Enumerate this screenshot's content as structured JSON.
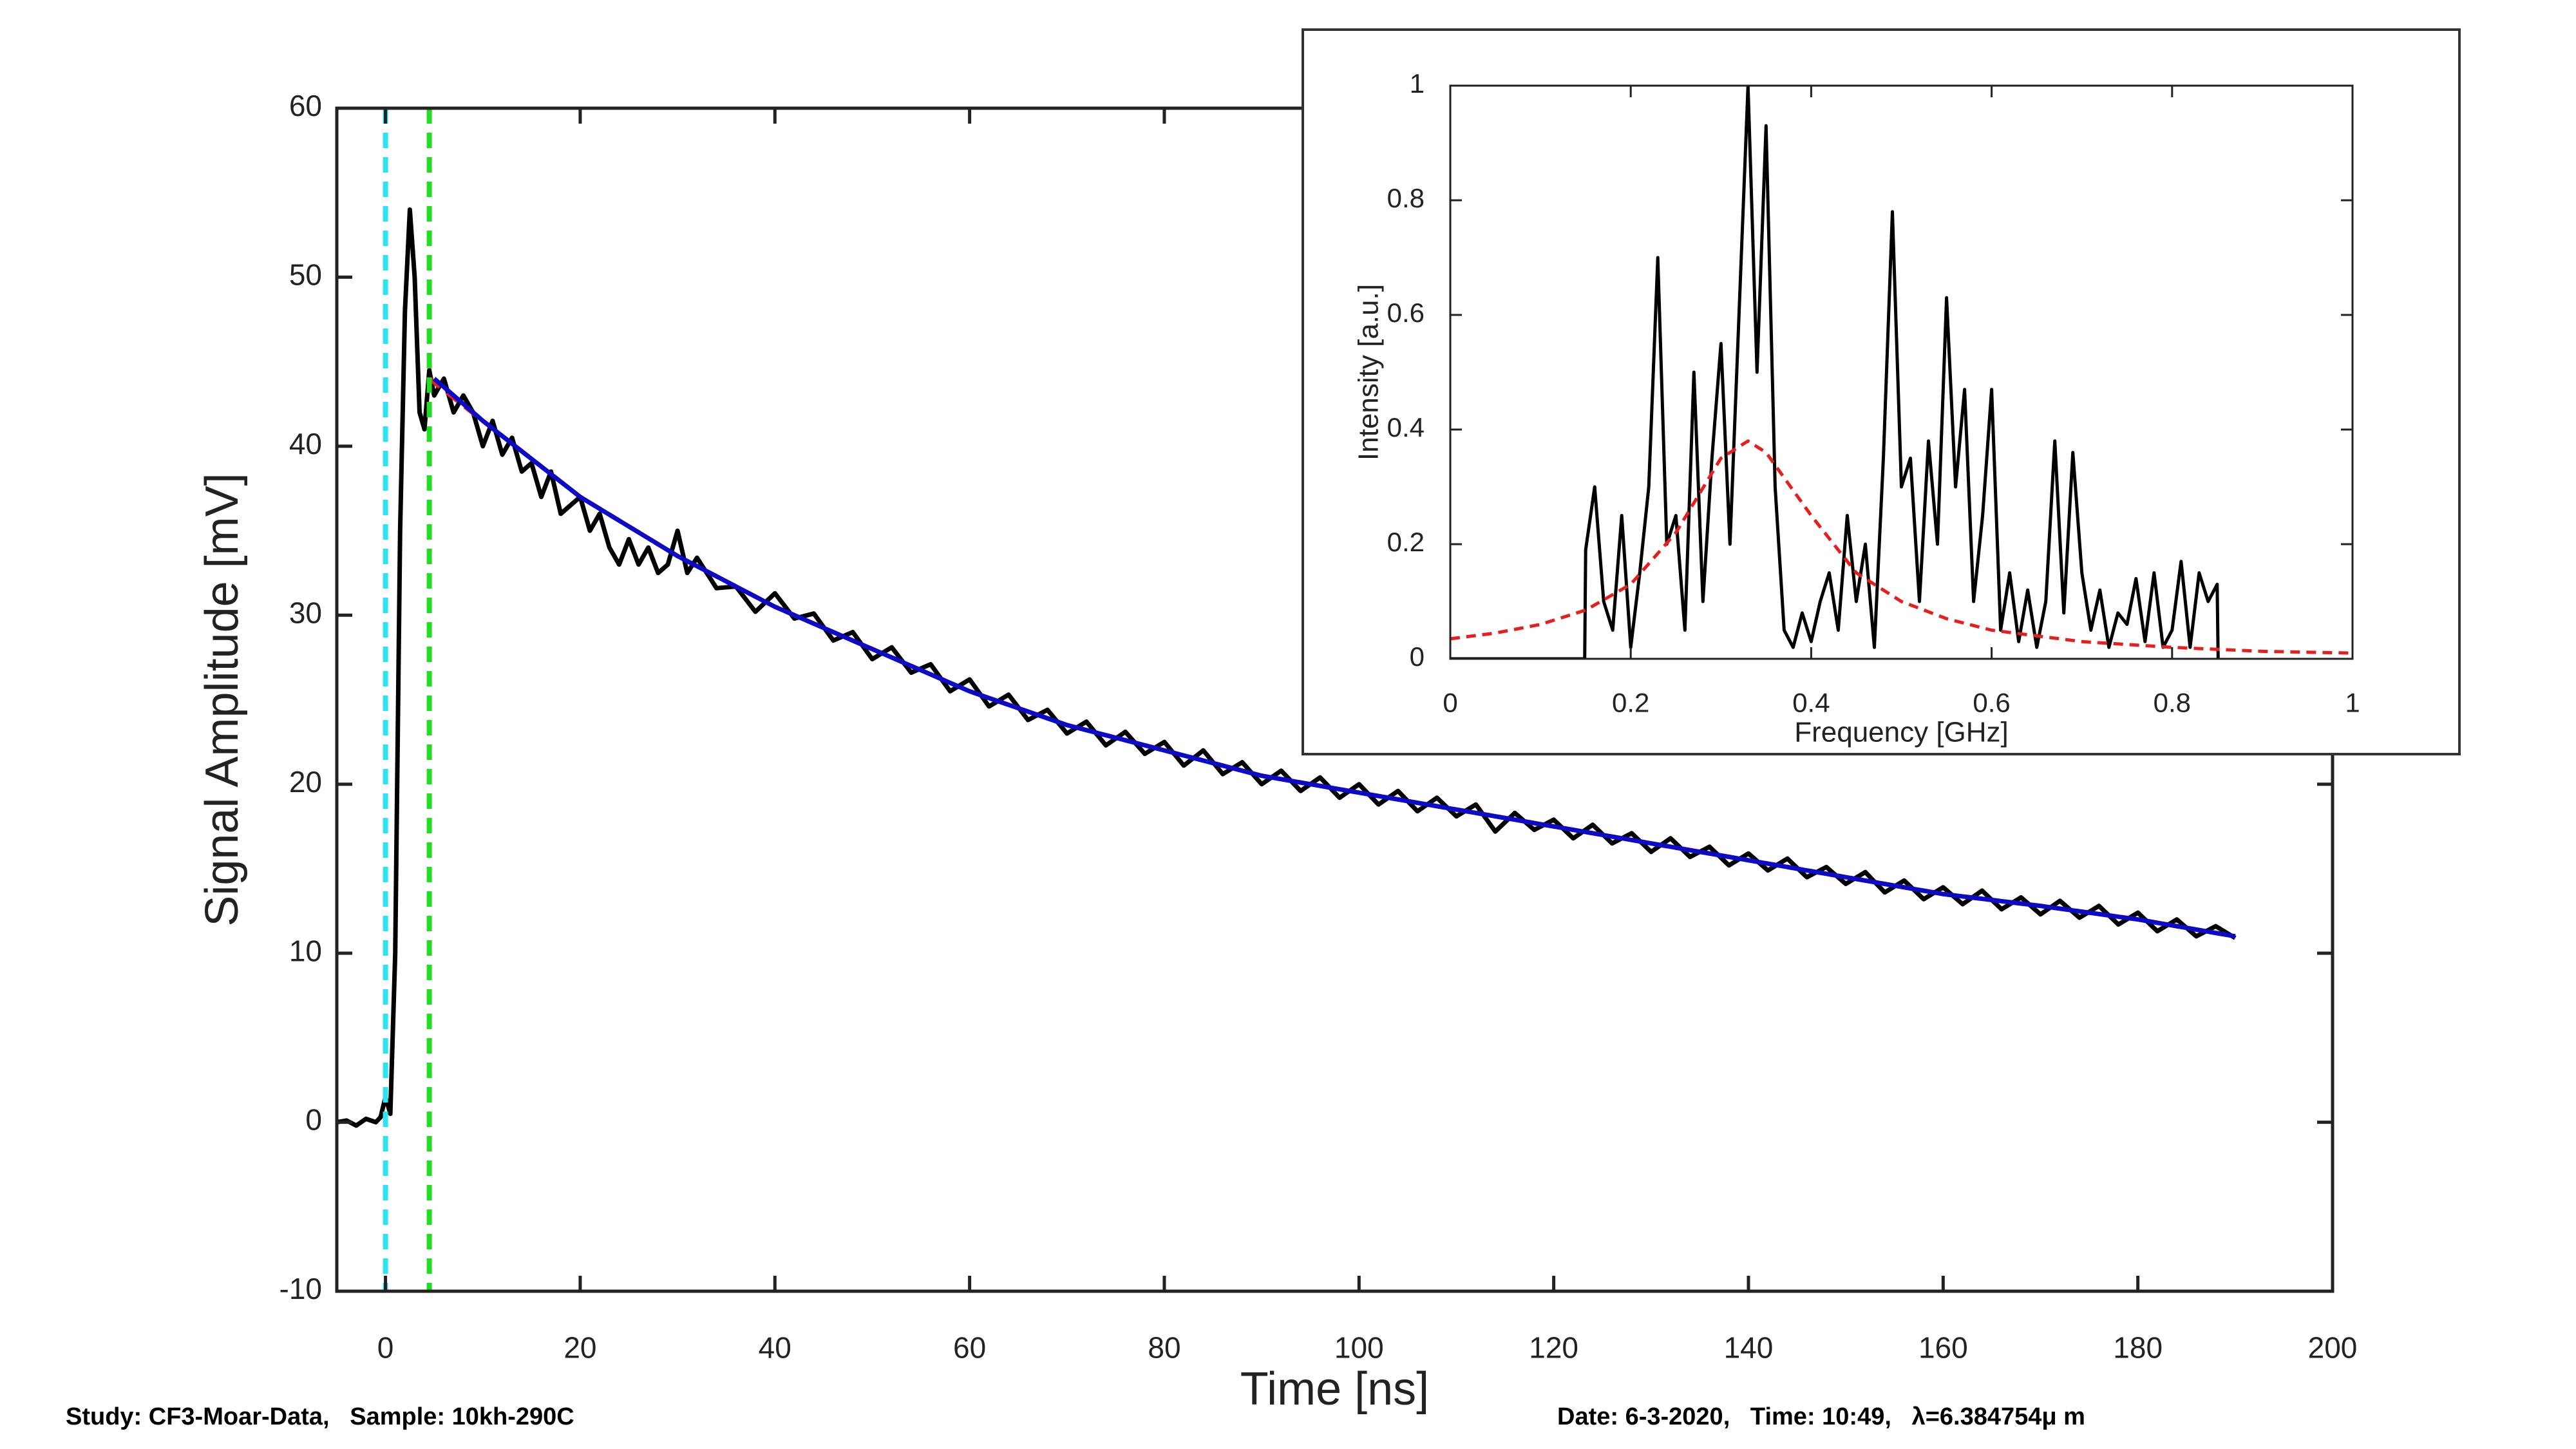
{
  "chart_data": [
    {
      "type": "line",
      "xlabel": "Time [ns]",
      "ylabel": "Signal Amplitude [mV]",
      "xlim": [
        -5,
        200
      ],
      "ylim": [
        -10,
        60
      ],
      "xticks": [
        0,
        20,
        40,
        60,
        80,
        100,
        120,
        140,
        160,
        180,
        200
      ],
      "yticks": [
        -10,
        0,
        10,
        20,
        30,
        40,
        50,
        60
      ],
      "vlines": [
        {
          "x": 0,
          "color": "#2fe3f0"
        },
        {
          "x": 4.5,
          "color": "#22dd22"
        }
      ],
      "series": [
        {
          "color": "#000000",
          "style": "solid",
          "x": [
            -5,
            -4,
            -3,
            -2,
            -1,
            -0.5,
            0,
            0.5,
            1,
            1.5,
            2,
            2.5,
            3,
            3.5,
            4,
            4.5,
            5,
            6,
            7,
            8,
            9,
            10,
            11,
            12,
            13,
            14,
            15,
            16,
            17,
            18,
            19,
            20,
            21,
            22,
            23,
            24,
            25,
            26,
            27,
            28,
            29,
            30,
            31,
            32,
            34,
            36,
            38,
            40,
            42,
            44,
            46,
            48,
            50,
            52,
            54,
            56,
            58,
            60,
            62,
            64,
            66,
            68,
            70,
            72,
            74,
            76,
            78,
            80,
            82,
            84,
            86,
            88,
            90,
            92,
            94,
            96,
            98,
            100,
            102,
            104,
            106,
            108,
            110,
            112,
            114,
            116,
            118,
            120,
            122,
            124,
            126,
            128,
            130,
            132,
            134,
            136,
            138,
            140,
            142,
            144,
            146,
            148,
            150,
            152,
            154,
            156,
            158,
            160,
            162,
            164,
            166,
            168,
            170,
            172,
            174,
            176,
            178,
            180,
            182,
            184,
            186,
            188,
            190
          ],
          "values": [
            0,
            0.1,
            -0.2,
            0.2,
            0,
            0.3,
            1.5,
            0.5,
            10,
            35,
            48,
            54,
            50,
            42,
            41,
            44.5,
            43,
            44,
            42,
            43,
            42,
            40,
            41.5,
            39.5,
            40.5,
            38.5,
            39,
            37,
            38.5,
            36,
            36.5,
            37,
            35,
            36,
            34,
            33,
            34.5,
            33,
            34,
            32.5,
            33,
            35,
            32.5,
            33.4,
            31.6,
            31.7,
            30.2,
            31.3,
            29.8,
            30.1,
            28.5,
            29.0,
            27.4,
            28.1,
            26.6,
            27.1,
            25.5,
            26.2,
            24.6,
            25.3,
            23.8,
            24.4,
            23.0,
            23.7,
            22.3,
            23.1,
            21.8,
            22.5,
            21.1,
            22.0,
            20.6,
            21.3,
            20.0,
            20.8,
            19.6,
            20.4,
            19.2,
            20.0,
            18.8,
            19.6,
            18.4,
            19.2,
            18.1,
            18.8,
            17.2,
            18.3,
            17.3,
            17.9,
            16.8,
            17.6,
            16.5,
            17.1,
            16.0,
            16.8,
            15.7,
            16.3,
            15.2,
            15.9,
            14.9,
            15.6,
            14.5,
            15.1,
            14.1,
            14.8,
            13.6,
            14.3,
            13.2,
            13.9,
            12.9,
            13.7,
            12.6,
            13.3,
            12.3,
            13.1,
            12.1,
            12.8,
            11.7,
            12.4,
            11.3,
            12.0,
            11.0,
            11.6,
            10.9
          ]
        },
        {
          "color": "#e61e1e",
          "style": "dashed",
          "x": [
            4.5,
            10,
            20,
            30,
            40,
            50,
            60,
            70,
            80,
            90,
            100,
            110,
            120,
            130,
            140,
            150,
            160,
            170,
            180,
            190
          ],
          "values": [
            44,
            41.5,
            37,
            33.5,
            30.5,
            28,
            25.5,
            23.5,
            22,
            20.5,
            19.5,
            18.5,
            17.5,
            16.5,
            15.5,
            14.5,
            13.5,
            12.8,
            12,
            11
          ]
        },
        {
          "color": "#0a0ac8",
          "style": "solid",
          "x": [
            5,
            10,
            20,
            30,
            40,
            50,
            60,
            70,
            80,
            90,
            100,
            110,
            120,
            130,
            140,
            150,
            160,
            170,
            180,
            190
          ],
          "values": [
            44,
            41.5,
            37,
            33.5,
            30.5,
            28,
            25.5,
            23.5,
            22,
            20.5,
            19.5,
            18.5,
            17.5,
            16.5,
            15.5,
            14.5,
            13.5,
            12.8,
            12,
            11
          ]
        }
      ]
    },
    {
      "type": "line",
      "xlabel": "Frequency [GHz]",
      "ylabel": "Intensity [a.u.]",
      "xlim": [
        0,
        1
      ],
      "ylim": [
        0,
        1
      ],
      "xticks": [
        0,
        0.2,
        0.4,
        0.6,
        0.8,
        1
      ],
      "yticks": [
        0,
        0.2,
        0.4,
        0.6,
        0.8,
        1
      ],
      "series": [
        {
          "color": "#000000",
          "style": "solid",
          "x": [
            0,
            0.149,
            0.15,
            0.16,
            0.17,
            0.18,
            0.19,
            0.2,
            0.21,
            0.22,
            0.23,
            0.24,
            0.25,
            0.26,
            0.27,
            0.28,
            0.29,
            0.3,
            0.31,
            0.32,
            0.33,
            0.34,
            0.35,
            0.36,
            0.37,
            0.38,
            0.39,
            0.4,
            0.41,
            0.42,
            0.43,
            0.44,
            0.45,
            0.46,
            0.47,
            0.48,
            0.49,
            0.5,
            0.51,
            0.52,
            0.53,
            0.54,
            0.55,
            0.56,
            0.57,
            0.58,
            0.59,
            0.6,
            0.61,
            0.62,
            0.63,
            0.64,
            0.65,
            0.66,
            0.67,
            0.68,
            0.69,
            0.7,
            0.71,
            0.72,
            0.73,
            0.74,
            0.75,
            0.76,
            0.77,
            0.78,
            0.79,
            0.8,
            0.81,
            0.82,
            0.83,
            0.84,
            0.85,
            0.851
          ],
          "values": [
            0,
            0,
            0.19,
            0.3,
            0.1,
            0.05,
            0.25,
            0.02,
            0.15,
            0.3,
            0.7,
            0.2,
            0.25,
            0.05,
            0.5,
            0.1,
            0.35,
            0.55,
            0.2,
            0.6,
            1.0,
            0.5,
            0.93,
            0.3,
            0.05,
            0.02,
            0.08,
            0.03,
            0.1,
            0.15,
            0.05,
            0.25,
            0.1,
            0.2,
            0.02,
            0.35,
            0.78,
            0.3,
            0.35,
            0.1,
            0.38,
            0.2,
            0.63,
            0.3,
            0.47,
            0.1,
            0.25,
            0.47,
            0.05,
            0.15,
            0.03,
            0.12,
            0.02,
            0.1,
            0.38,
            0.08,
            0.36,
            0.15,
            0.05,
            0.12,
            0.02,
            0.08,
            0.06,
            0.14,
            0.03,
            0.15,
            0.02,
            0.05,
            0.17,
            0.02,
            0.15,
            0.1,
            0.13,
            0
          ]
        },
        {
          "color": "#e61e1e",
          "style": "dashed",
          "x": [
            0,
            0.05,
            0.1,
            0.15,
            0.2,
            0.25,
            0.3,
            0.33,
            0.35,
            0.4,
            0.45,
            0.5,
            0.55,
            0.6,
            0.7,
            0.8,
            0.9,
            1
          ],
          "values": [
            0.035,
            0.045,
            0.06,
            0.085,
            0.13,
            0.22,
            0.35,
            0.38,
            0.36,
            0.25,
            0.15,
            0.1,
            0.07,
            0.05,
            0.03,
            0.02,
            0.013,
            0.01
          ]
        }
      ]
    }
  ],
  "footer": {
    "study": "Study: CF3-Moar-Data,   Sample: 10kh-290C",
    "date": "Date: 6-3-2020,   Time: 10:49,   λ=6.384754μ m"
  }
}
